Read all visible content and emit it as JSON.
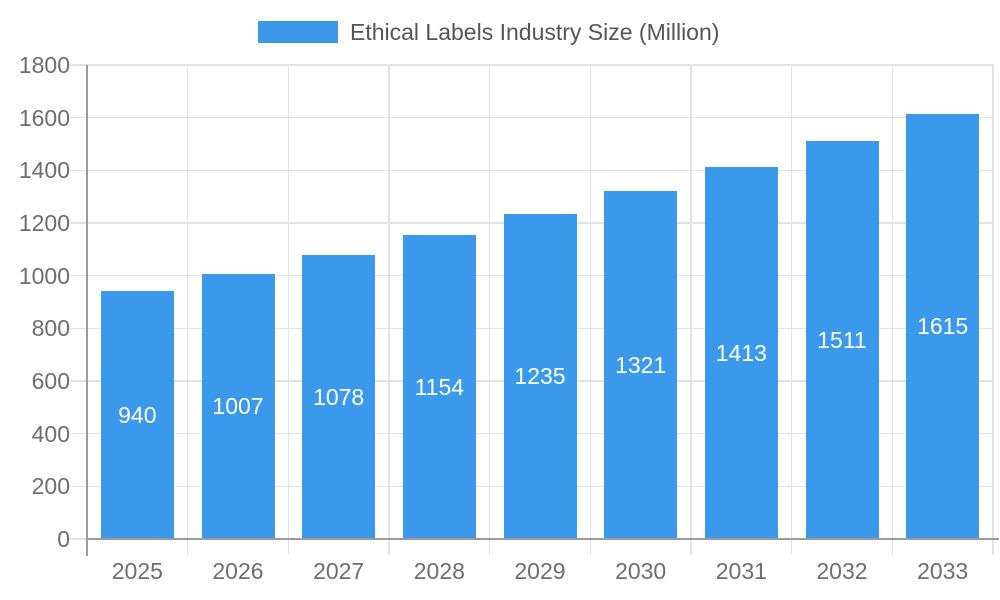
{
  "chart_data": {
    "type": "bar",
    "title": "Ethical Labels Industry Size (Million)",
    "legend": {
      "label": "Ethical Labels Industry Size (Million)",
      "position": "top-center"
    },
    "categories": [
      "2025",
      "2026",
      "2027",
      "2028",
      "2029",
      "2030",
      "2031",
      "2032",
      "2033"
    ],
    "values": [
      940,
      1007,
      1078,
      1154,
      1235,
      1321,
      1413,
      1511,
      1615
    ],
    "value_labels_visible": true,
    "value_label_position": "inside-center",
    "xlabel": "",
    "ylabel": "",
    "ylim": [
      0,
      1800
    ],
    "y_tick_values": [
      0,
      200,
      400,
      600,
      800,
      1000,
      1200,
      1400,
      1600,
      1800
    ],
    "y_tick_labels": [
      "0",
      "200",
      "400",
      "600",
      "800",
      "1000",
      "1200",
      "1400",
      "1600",
      "1800"
    ],
    "grid": true,
    "colors": {
      "bar": "#3B99EC",
      "axis_line": "#9B9B9B",
      "grid_line": "#E2E2E2",
      "tick_label": "#6E6E6E",
      "legend_text": "#555555",
      "value_label": "#FFFFFF",
      "background": "#FFFFFF"
    }
  }
}
